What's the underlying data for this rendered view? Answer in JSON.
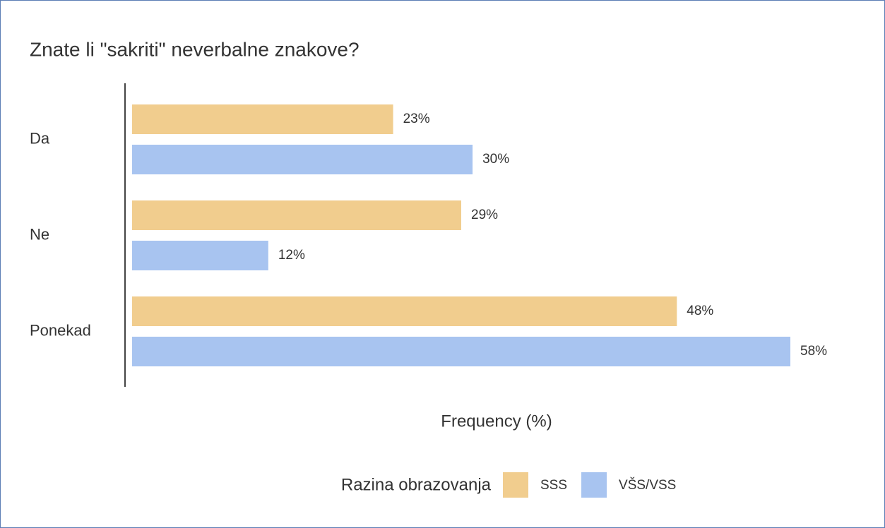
{
  "chart_data": {
    "type": "bar",
    "orientation": "horizontal",
    "title": "Znate li \"sakriti\" neverbalne znakove?",
    "categories": [
      "Da",
      "Ne",
      "Ponekad"
    ],
    "series": [
      {
        "name": "SSS",
        "color": "#f1cd8e",
        "values": [
          23,
          29,
          48
        ],
        "value_labels": [
          "23%",
          "29%",
          "48%"
        ]
      },
      {
        "name": "VŠS/VSS",
        "color": "#a8c4f0",
        "values": [
          30,
          12,
          58
        ],
        "value_labels": [
          "30%",
          "12%",
          "58%"
        ]
      }
    ],
    "xlim": [
      0,
      58
    ],
    "x_label": "Frequency (%)",
    "legend_title": "Razina obrazovanja",
    "legend": "bottom"
  }
}
